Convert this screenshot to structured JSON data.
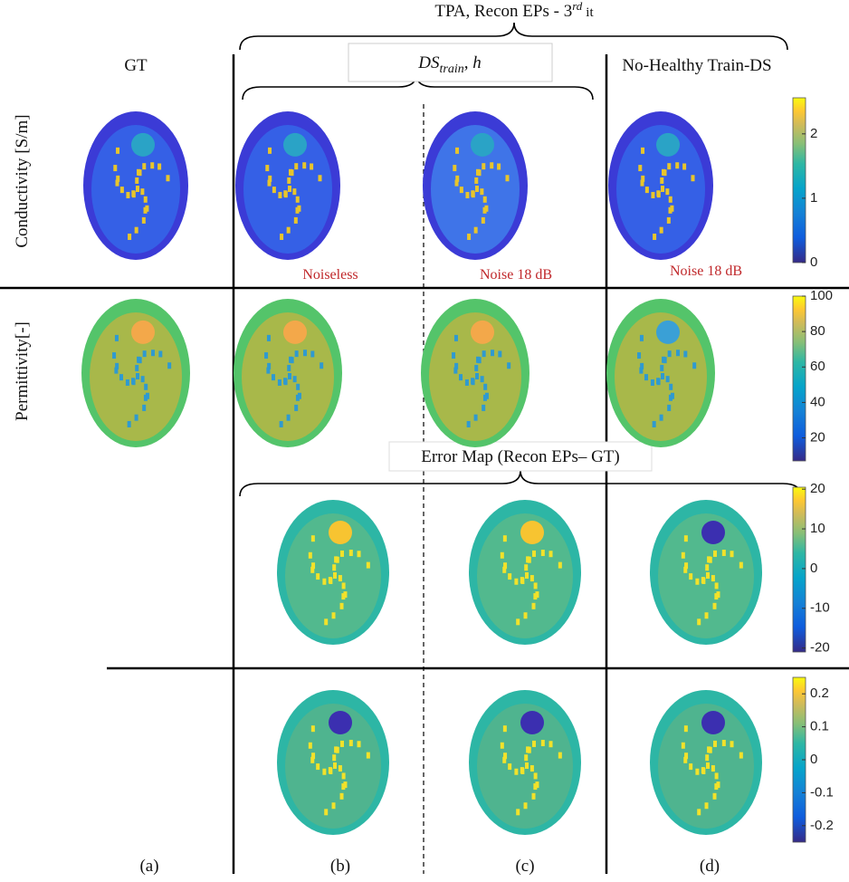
{
  "header": {
    "title": "TPA, Recon EPs - 3",
    "title_sup": "rd",
    "title_tail": "it",
    "ds_main": "DS",
    "ds_sub": "train",
    "ds_tail": ", h"
  },
  "columns": {
    "gt": "GT",
    "no_healthy": "No-Healthy Train-DS"
  },
  "rows": {
    "conductivity": "Conductivity [S/m]",
    "permittivity": "Permittivity[-]"
  },
  "noise_labels": [
    "Noiseless",
    "Noise 18 dB",
    "Noise 18 dB"
  ],
  "error_title": "Error Map (Recon EPs– GT)",
  "panel_labels": [
    "(a)",
    "(b)",
    "(c)",
    "(d)"
  ],
  "colorbars": [
    {
      "lim": [
        0,
        2.56
      ],
      "ticks": [
        0,
        1,
        2
      ]
    },
    {
      "lim": [
        7,
        100
      ],
      "ticks": [
        20,
        40,
        60,
        80,
        100
      ]
    },
    {
      "lim": [
        -21,
        20.5
      ],
      "ticks": [
        -20,
        -10,
        0,
        10,
        20
      ]
    },
    {
      "lim": [
        -0.25,
        0.25
      ],
      "ticks": [
        -0.2,
        -0.1,
        0,
        0.1,
        0.2
      ]
    }
  ]
}
